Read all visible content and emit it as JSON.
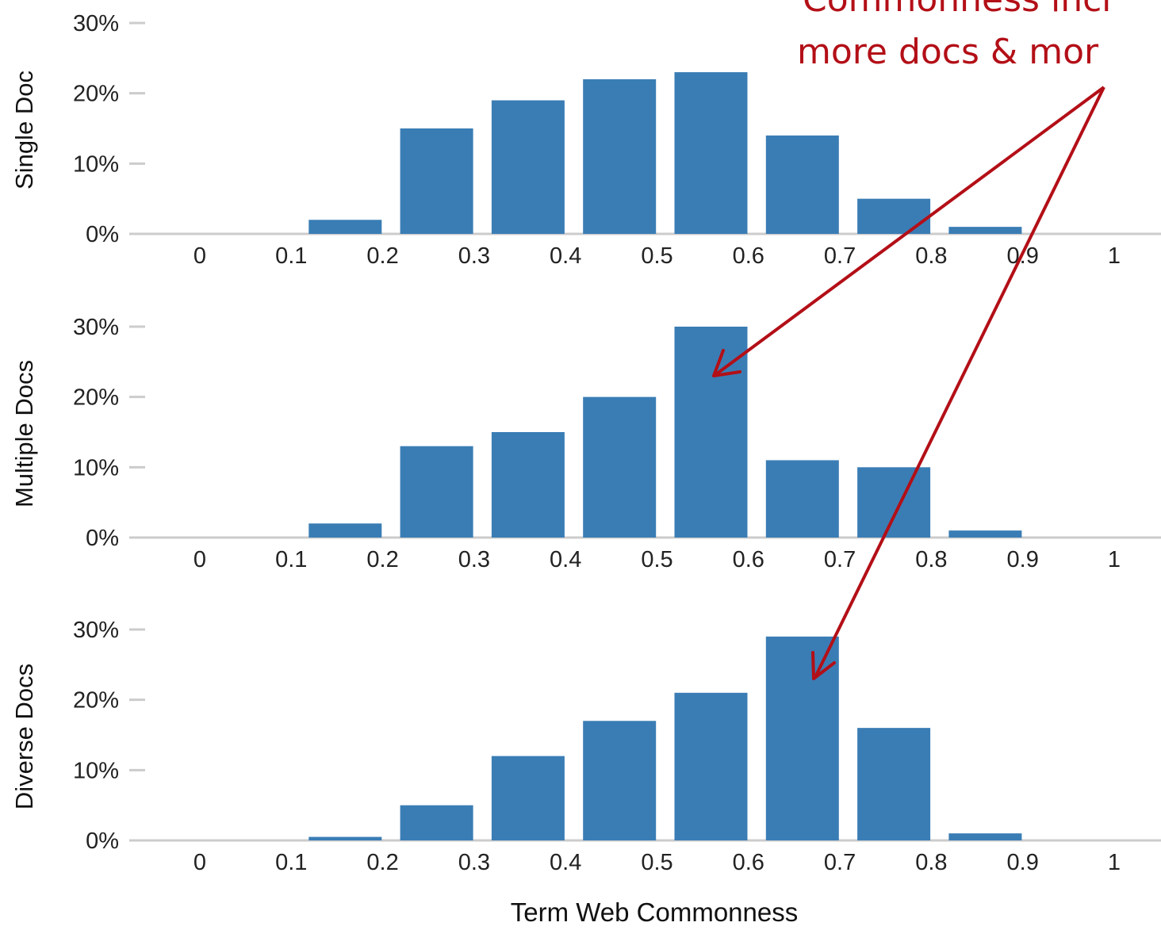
{
  "colors": {
    "bar": "#3a7db5",
    "axis": "#cccccc",
    "annotation": "#b30f17"
  },
  "annotation": {
    "line1": "Commonness incr",
    "line2": "more docs & mor"
  },
  "chart_data": [
    {
      "type": "bar",
      "ylabel": "Single Doc",
      "categories": [
        "0",
        "0.1",
        "0.2",
        "0.3",
        "0.4",
        "0.5",
        "0.6",
        "0.7",
        "0.8",
        "0.9",
        "1"
      ],
      "values": [
        0,
        2,
        15,
        19,
        22,
        23,
        14,
        5,
        1,
        0,
        0
      ],
      "yticks": [
        "0%",
        "10%",
        "20%",
        "30%"
      ],
      "ylim": [
        0,
        30
      ],
      "grid": false
    },
    {
      "type": "bar",
      "ylabel": "Multiple Docs",
      "categories": [
        "0",
        "0.1",
        "0.2",
        "0.3",
        "0.4",
        "0.5",
        "0.6",
        "0.7",
        "0.8",
        "0.9",
        "1"
      ],
      "values": [
        0,
        2,
        13,
        15,
        20,
        30,
        11,
        10,
        1,
        0,
        0
      ],
      "yticks": [
        "0%",
        "10%",
        "20%",
        "30%"
      ],
      "ylim": [
        0,
        30
      ],
      "grid": false
    },
    {
      "type": "bar",
      "ylabel": "Diverse Docs",
      "xlabel": "Term Web Commonness",
      "categories": [
        "0",
        "0.1",
        "0.2",
        "0.3",
        "0.4",
        "0.5",
        "0.6",
        "0.7",
        "0.8",
        "0.9",
        "1"
      ],
      "values": [
        0,
        0.5,
        5,
        12,
        17,
        21,
        29,
        16,
        1,
        0,
        0
      ],
      "yticks": [
        "0%",
        "10%",
        "20%",
        "30%"
      ],
      "ylim": [
        0,
        30
      ],
      "grid": false
    }
  ]
}
